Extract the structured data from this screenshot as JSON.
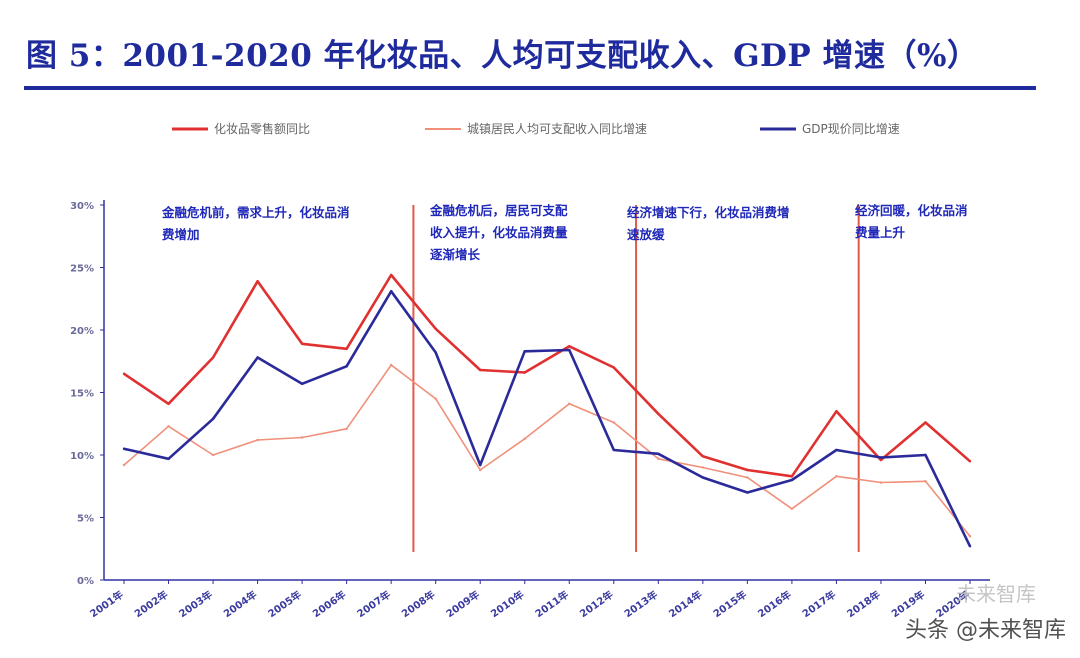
{
  "title": "图 5：2001-2020 年化妆品、人均可支配收入、GDP 增速（%）",
  "watermark": {
    "brand": "未来智库",
    "account": "头条 @未来智库"
  },
  "colors": {
    "title": "#1f2a9c",
    "cosmetics": "#e03030",
    "income": "#f0907a",
    "gdp": "#2a2a9a",
    "divider": "#e05a4a",
    "axis": "#3030a0"
  },
  "chart_data": {
    "type": "line",
    "title": "2001-2020 年化妆品、人均可支配收入、GDP 增速（%）",
    "xlabel": "",
    "ylabel": "%",
    "ylim": [
      0,
      30
    ],
    "yticks": [
      0,
      5,
      10,
      15,
      20,
      25,
      30
    ],
    "ytick_labels": [
      "0%",
      "5%",
      "10%",
      "15%",
      "20%",
      "25%",
      "30%"
    ],
    "categories": [
      "2001年",
      "2002年",
      "2003年",
      "2004年",
      "2005年",
      "2006年",
      "2007年",
      "2008年",
      "2009年",
      "2010年",
      "2011年",
      "2012年",
      "2013年",
      "2014年",
      "2015年",
      "2016年",
      "2017年",
      "2018年",
      "2019年",
      "2020年"
    ],
    "series": [
      {
        "name": "化妆品零售额同比",
        "key": "cosmetics",
        "values": [
          16.5,
          14.1,
          17.8,
          23.9,
          18.9,
          18.5,
          24.4,
          20.1,
          16.8,
          16.6,
          18.7,
          17.0,
          13.3,
          9.9,
          8.8,
          8.3,
          13.5,
          9.6,
          12.6,
          9.5
        ]
      },
      {
        "name": "城镇居民人均可支配收入同比增速",
        "key": "income",
        "values": [
          9.2,
          12.3,
          10.0,
          11.2,
          11.4,
          12.1,
          17.2,
          14.5,
          8.8,
          11.3,
          14.1,
          12.6,
          9.7,
          9.0,
          8.2,
          5.7,
          8.3,
          7.8,
          7.9,
          3.5
        ]
      },
      {
        "name": "GDP现价同比增速",
        "key": "gdp",
        "values": [
          10.5,
          9.7,
          12.9,
          17.8,
          15.7,
          17.1,
          23.1,
          18.2,
          9.2,
          18.3,
          18.4,
          10.4,
          10.1,
          8.2,
          7.0,
          8.0,
          10.4,
          9.8,
          10.0,
          2.7
        ]
      }
    ],
    "dividers_after_index": [
      6,
      11,
      16
    ],
    "annotations": [
      "金融危机前，需求上升，化妆品消费增加",
      "金融危机后，居民可支配收入提升，化妆品消费量逐渐增长",
      "经济增速下行，化妆品消费增速放缓",
      "经济回暖，化妆品消费量上升"
    ]
  }
}
